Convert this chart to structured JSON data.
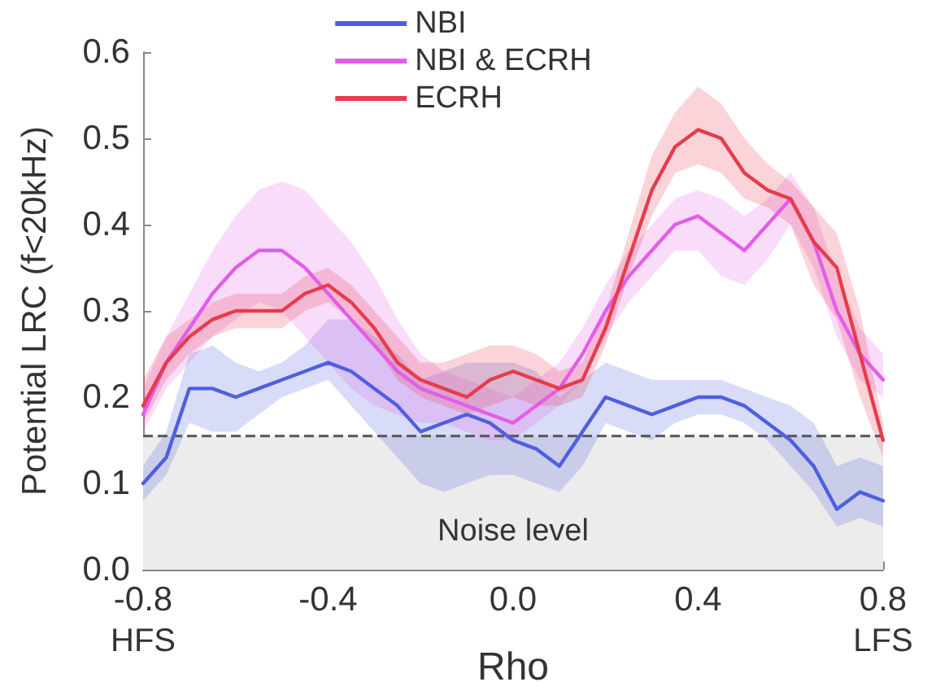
{
  "chart_data": {
    "type": "line",
    "xlabel": "Rho",
    "ylabel": "Potential LRC (f<20kHz)",
    "x": [
      -0.8,
      -0.75,
      -0.7,
      -0.65,
      -0.6,
      -0.55,
      -0.5,
      -0.45,
      -0.4,
      -0.35,
      -0.3,
      -0.25,
      -0.2,
      -0.15,
      -0.1,
      -0.05,
      0,
      0.05,
      0.1,
      0.15,
      0.2,
      0.25,
      0.3,
      0.35,
      0.4,
      0.45,
      0.5,
      0.55,
      0.6,
      0.65,
      0.7,
      0.75,
      0.8
    ],
    "series": [
      {
        "name": "NBI",
        "color": "#4f5fe0",
        "values": [
          0.1,
          0.13,
          0.21,
          0.21,
          0.2,
          0.21,
          0.22,
          0.23,
          0.24,
          0.23,
          0.21,
          0.19,
          0.16,
          0.17,
          0.18,
          0.17,
          0.15,
          0.14,
          0.12,
          0.16,
          0.2,
          0.19,
          0.18,
          0.19,
          0.2,
          0.2,
          0.19,
          0.17,
          0.15,
          0.12,
          0.07,
          0.09,
          0.08
        ],
        "lower": [
          0.08,
          0.11,
          0.17,
          0.16,
          0.16,
          0.18,
          0.2,
          0.21,
          0.22,
          0.19,
          0.16,
          0.13,
          0.1,
          0.09,
          0.1,
          0.11,
          0.11,
          0.1,
          0.09,
          0.12,
          0.17,
          0.16,
          0.15,
          0.17,
          0.18,
          0.18,
          0.17,
          0.15,
          0.12,
          0.09,
          0.05,
          0.06,
          0.05
        ],
        "upper": [
          0.12,
          0.16,
          0.25,
          0.26,
          0.24,
          0.23,
          0.24,
          0.26,
          0.29,
          0.29,
          0.27,
          0.25,
          0.22,
          0.23,
          0.24,
          0.24,
          0.24,
          0.23,
          0.2,
          0.22,
          0.24,
          0.23,
          0.22,
          0.22,
          0.22,
          0.22,
          0.21,
          0.2,
          0.19,
          0.17,
          0.12,
          0.13,
          0.12
        ]
      },
      {
        "name": "NBI & ECRH",
        "color": "#e35ee8",
        "values": [
          0.18,
          0.24,
          0.28,
          0.32,
          0.35,
          0.37,
          0.37,
          0.35,
          0.32,
          0.29,
          0.26,
          0.23,
          0.21,
          0.2,
          0.19,
          0.18,
          0.17,
          0.19,
          0.21,
          0.25,
          0.3,
          0.34,
          0.37,
          0.4,
          0.41,
          0.39,
          0.37,
          0.4,
          0.43,
          0.38,
          0.3,
          0.25,
          0.22
        ],
        "lower": [
          0.16,
          0.21,
          0.24,
          0.27,
          0.29,
          0.31,
          0.3,
          0.27,
          0.24,
          0.21,
          0.19,
          0.18,
          0.17,
          0.17,
          0.16,
          0.15,
          0.15,
          0.17,
          0.19,
          0.22,
          0.27,
          0.31,
          0.34,
          0.37,
          0.37,
          0.34,
          0.33,
          0.36,
          0.4,
          0.35,
          0.27,
          0.22,
          0.2
        ],
        "upper": [
          0.21,
          0.27,
          0.32,
          0.37,
          0.41,
          0.44,
          0.45,
          0.44,
          0.41,
          0.38,
          0.34,
          0.29,
          0.25,
          0.23,
          0.22,
          0.21,
          0.2,
          0.22,
          0.24,
          0.28,
          0.33,
          0.37,
          0.4,
          0.43,
          0.44,
          0.43,
          0.41,
          0.43,
          0.46,
          0.42,
          0.34,
          0.28,
          0.25
        ]
      },
      {
        "name": "ECRH",
        "color": "#e63c4c",
        "values": [
          0.19,
          0.24,
          0.27,
          0.29,
          0.3,
          0.3,
          0.3,
          0.32,
          0.33,
          0.31,
          0.28,
          0.24,
          0.22,
          0.21,
          0.2,
          0.22,
          0.23,
          0.22,
          0.21,
          0.22,
          0.28,
          0.36,
          0.44,
          0.49,
          0.51,
          0.5,
          0.46,
          0.44,
          0.43,
          0.38,
          0.35,
          0.25,
          0.15
        ],
        "lower": [
          0.17,
          0.22,
          0.25,
          0.27,
          0.28,
          0.28,
          0.28,
          0.3,
          0.31,
          0.29,
          0.26,
          0.22,
          0.2,
          0.19,
          0.18,
          0.19,
          0.2,
          0.19,
          0.19,
          0.2,
          0.26,
          0.34,
          0.41,
          0.46,
          0.47,
          0.46,
          0.43,
          0.42,
          0.4,
          0.33,
          0.29,
          0.2,
          0.13
        ],
        "upper": [
          0.22,
          0.27,
          0.29,
          0.31,
          0.32,
          0.32,
          0.32,
          0.34,
          0.35,
          0.33,
          0.3,
          0.27,
          0.24,
          0.24,
          0.25,
          0.26,
          0.26,
          0.25,
          0.23,
          0.24,
          0.3,
          0.39,
          0.48,
          0.53,
          0.56,
          0.54,
          0.5,
          0.47,
          0.45,
          0.42,
          0.39,
          0.3,
          0.17
        ]
      }
    ],
    "xlim": [
      -0.8,
      0.8
    ],
    "xticks": [
      -0.8,
      -0.4,
      {
        "value": 0,
        "label": "0.0"
      },
      0.4,
      0.8
    ],
    "ylim": [
      0,
      0.6
    ],
    "yticks": [
      {
        "value": 0,
        "label": "0.0"
      },
      0.1,
      0.2,
      0.3,
      0.4,
      0.5,
      0.6
    ],
    "bands": [
      {
        "axis": "y",
        "from": 0,
        "to": 0.155,
        "label": "Noise level",
        "color": "#ececec"
      }
    ],
    "ref_lines": [
      {
        "axis": "y",
        "value": 0.155,
        "color": "#555555",
        "line_style": "dashed"
      }
    ],
    "annotations": [
      "HFS",
      "LFS"
    ],
    "legend": "top",
    "grid": false,
    "marker": "none",
    "line_style": "solid"
  }
}
